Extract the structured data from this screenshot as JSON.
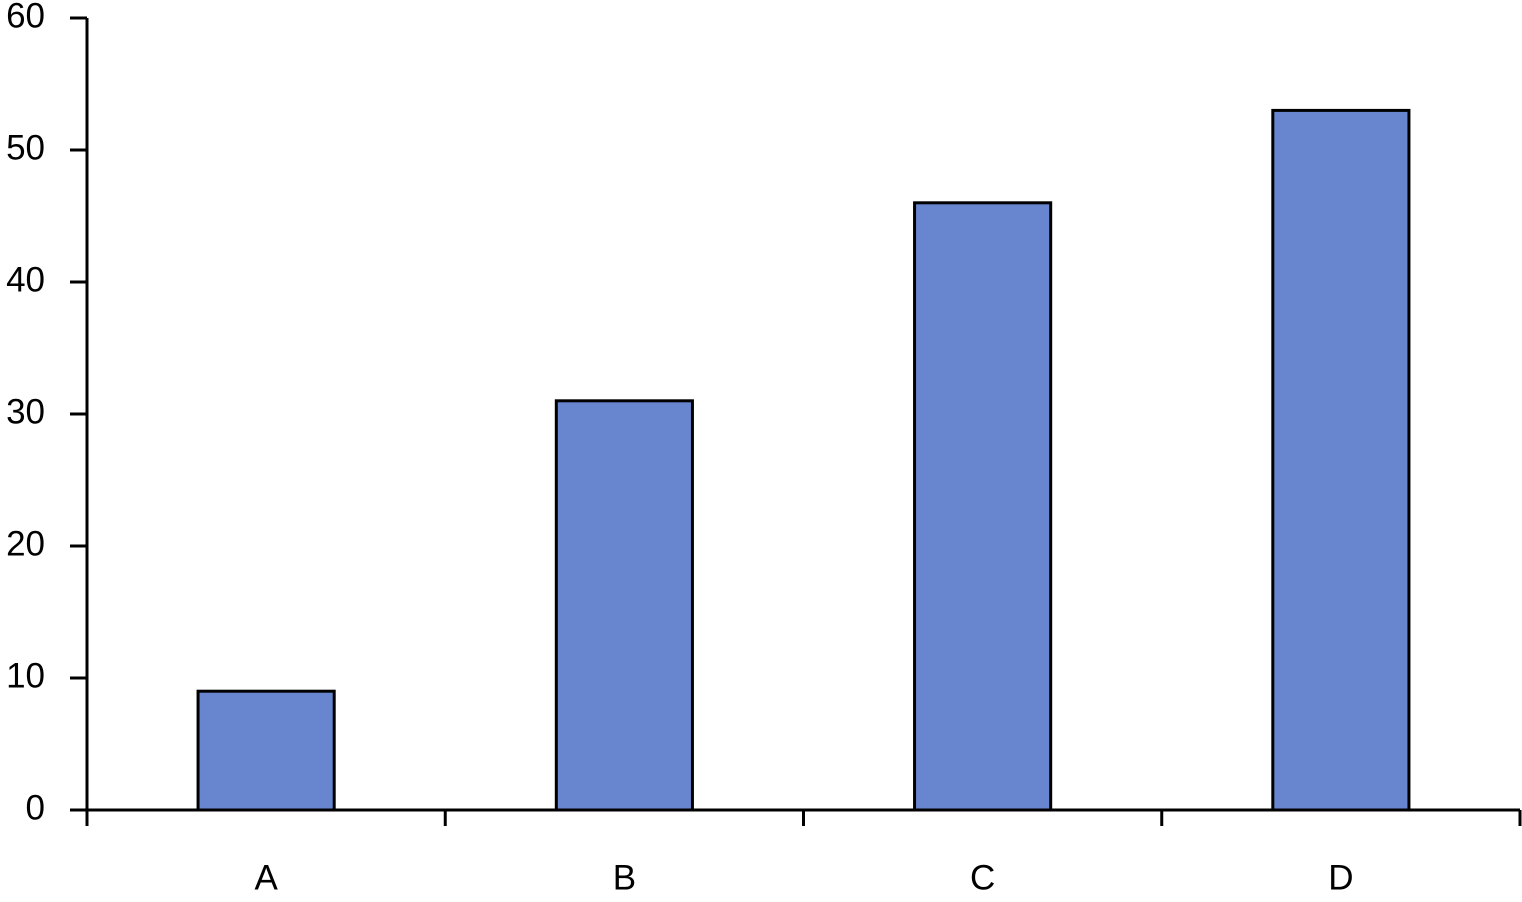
{
  "chart_data": {
    "type": "bar",
    "categories": [
      "A",
      "B",
      "C",
      "D"
    ],
    "values": [
      9,
      31,
      46,
      53
    ],
    "color": "#6886d0",
    "ylim": [
      0,
      60
    ],
    "yticks": [
      0,
      10,
      20,
      30,
      40,
      50,
      60
    ],
    "grid": false
  }
}
